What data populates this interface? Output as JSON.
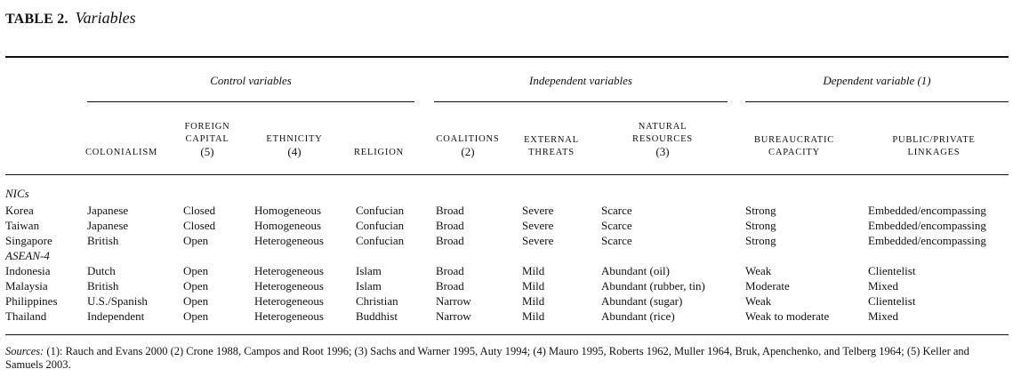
{
  "table": {
    "label": "TABLE 2.",
    "name": "Variables"
  },
  "groups": {
    "control": "Control variables",
    "independent": "Independent variables",
    "dependent": "Dependent variable (1)"
  },
  "columns": {
    "colonialism": {
      "line1": "COLONIALISM"
    },
    "foreign_capital": {
      "line1": "FOREIGN",
      "line2": "CAPITAL",
      "num": "(5)"
    },
    "ethnicity": {
      "line1": "ETHNICITY",
      "num": "(4)"
    },
    "religion": {
      "line1": "RELIGION"
    },
    "coalitions": {
      "line1": "COALITIONS",
      "num": "(2)"
    },
    "external_threats": {
      "line1": "EXTERNAL",
      "line2": "THREATS"
    },
    "natural_resources": {
      "line1": "NATURAL",
      "line2": "RESOURCES",
      "num": "(3)"
    },
    "bureaucratic_capacity": {
      "line1": "BUREAUCRATIC",
      "line2": "CAPACITY"
    },
    "public_private": {
      "line1": "PUBLIC/PRIVATE",
      "line2": "LINKAGES"
    }
  },
  "sections": {
    "nics": "NICs",
    "asean": "ASEAN-4"
  },
  "rows": [
    [
      "Korea",
      "Japanese",
      "Closed",
      "Homogeneous",
      "Confucian",
      "Broad",
      "Severe",
      "Scarce",
      "Strong",
      "Embedded/encompassing"
    ],
    [
      "Taiwan",
      "Japanese",
      "Closed",
      "Homogeneous",
      "Confucian",
      "Broad",
      "Severe",
      "Scarce",
      "Strong",
      "Embedded/encompassing"
    ],
    [
      "Singapore",
      "British",
      "Open",
      "Heterogeneous",
      "Confucian",
      "Broad",
      "Severe",
      "Scarce",
      "Strong",
      "Embedded/encompassing"
    ],
    [
      "Indonesia",
      "Dutch",
      "Open",
      "Heterogeneous",
      "Islam",
      "Broad",
      "Mild",
      "Abundant (oil)",
      "Weak",
      "Clientelist"
    ],
    [
      "Malaysia",
      "British",
      "Open",
      "Heterogeneous",
      "Islam",
      "Broad",
      "Mild",
      "Abundant (rubber, tin)",
      "Moderate",
      "Mixed"
    ],
    [
      "Philippines",
      "U.S./Spanish",
      "Open",
      "Heterogeneous",
      "Christian",
      "Narrow",
      "Mild",
      "Abundant (sugar)",
      "Weak",
      "Clientelist"
    ],
    [
      "Thailand",
      "Independent",
      "Open",
      "Heterogeneous",
      "Buddhist",
      "Narrow",
      "Mild",
      "Abundant (rice)",
      "Weak to moderate",
      "Mixed"
    ]
  ],
  "sources": {
    "lead": "Sources:",
    "text": " (1): Rauch and Evans 2000 (2) Crone 1988, Campos and Root 1996; (3) Sachs and Warner 1995, Auty 1994; (4) Mauro 1995, Roberts 1962, Muller 1964, Bruk, Apenchenko, and Telberg 1964; (5) Keller and Samuels 2003."
  }
}
